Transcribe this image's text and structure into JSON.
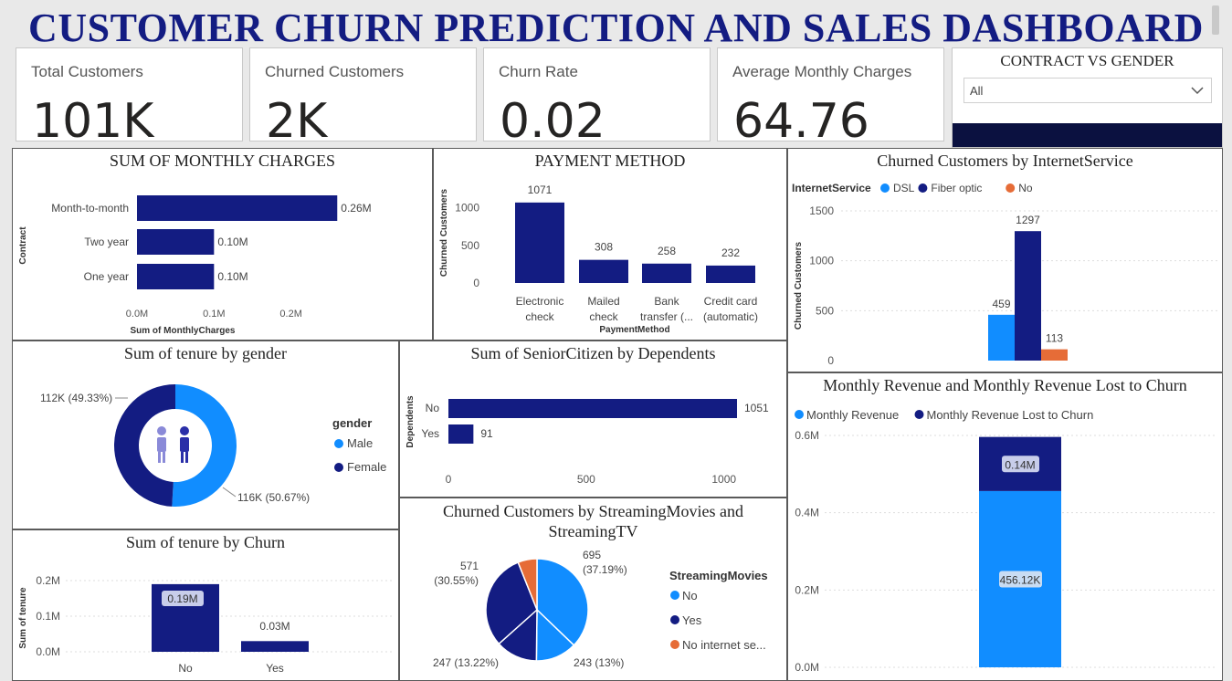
{
  "title": "CUSTOMER CHURN PREDICTION AND SALES DASHBOARD",
  "colors": {
    "navy": "#131c82",
    "lightblue": "#118dff",
    "orange": "#e66c37"
  },
  "kpis": [
    {
      "label": "Total Customers",
      "value": "101K"
    },
    {
      "label": "Churned Customers",
      "value": "2K"
    },
    {
      "label": "Churn Rate",
      "value": "0.02"
    },
    {
      "label": "Average Monthly Charges",
      "value": "64.76"
    }
  ],
  "slicer": {
    "title": "CONTRACT VS GENDER",
    "selected": "All",
    "icon": "chevron-down-icon"
  },
  "monthly_charges": {
    "title": "SUM OF MONTHLY CHARGES",
    "ylabel": "Contract",
    "xlabel": "Sum of MonthlyCharges",
    "categories": [
      "Month-to-month",
      "Two year",
      "One year"
    ],
    "values": [
      0.26,
      0.1,
      0.1
    ],
    "data_labels": [
      "0.26M",
      "0.10M",
      "0.10M"
    ],
    "xticks": [
      "0.0M",
      "0.1M",
      "0.2M"
    ],
    "xtick_values": [
      0,
      0.1,
      0.2
    ],
    "xlim": [
      0,
      0.3
    ]
  },
  "payment_method": {
    "title": "PAYMENT METHOD",
    "ylabel": "Churned Customers",
    "xlabel": "PaymentMethod",
    "categories": [
      [
        "Electronic",
        "check"
      ],
      [
        "Mailed",
        "check"
      ],
      [
        "Bank",
        "transfer (..."
      ],
      [
        "Credit card",
        "(automatic)"
      ]
    ],
    "values": [
      1071,
      308,
      258,
      232
    ],
    "data_labels": [
      "1071",
      "308",
      "258",
      "232"
    ],
    "yticks": [
      "0",
      "500",
      "1000"
    ],
    "ytick_values": [
      0,
      500,
      1000
    ],
    "ylim": [
      0,
      1300
    ]
  },
  "internet_service": {
    "title": "Churned Customers by InternetService",
    "legend_title": "InternetService",
    "ylabel": "Churned Customers",
    "series": [
      {
        "name": "DSL",
        "value": 459,
        "label": "459",
        "color": "#118dff"
      },
      {
        "name": "Fiber optic",
        "value": 1297,
        "label": "1297",
        "color": "#131c82"
      },
      {
        "name": "No",
        "value": 113,
        "label": "113",
        "color": "#e66c37"
      }
    ],
    "yticks": [
      "0",
      "500",
      "1000",
      "1500"
    ],
    "ytick_values": [
      0,
      500,
      1000,
      1500
    ],
    "ylim": [
      0,
      1500
    ]
  },
  "tenure_gender": {
    "title": "Sum of tenure by gender",
    "legend_title": "gender",
    "slices": [
      {
        "name": "Male",
        "value": 116,
        "label": "116K (50.67%)",
        "color": "#118dff"
      },
      {
        "name": "Female",
        "value": 112,
        "label": "112K (49.33%)",
        "color": "#131c82"
      }
    ],
    "center_icon": "male-female-icon"
  },
  "senior_dependents": {
    "title": "Sum of SeniorCitizen by Dependents",
    "ylabel": "Dependents",
    "categories": [
      "No",
      "Yes"
    ],
    "values": [
      1051,
      91
    ],
    "data_labels": [
      "1051",
      "91"
    ],
    "xticks": [
      "0",
      "500",
      "1000"
    ],
    "xtick_values": [
      0,
      500,
      1000
    ],
    "xlim": [
      0,
      1051
    ]
  },
  "tenure_churn": {
    "title": "Sum of tenure by Churn",
    "ylabel": "Sum of tenure",
    "categories": [
      "No",
      "Yes"
    ],
    "values": [
      0.19,
      0.03
    ],
    "data_labels": [
      "0.19M",
      "0.03M"
    ],
    "yticks": [
      "0.0M",
      "0.1M",
      "0.2M"
    ],
    "ytick_values": [
      0,
      0.1,
      0.2
    ],
    "ylim": [
      0,
      0.2
    ]
  },
  "streaming": {
    "title_line1": "Churned Customers by StreamingMovies and",
    "title_line2": "StreamingTV",
    "legend_title": "StreamingMovies",
    "legend": [
      {
        "name": "No",
        "color": "#118dff"
      },
      {
        "name": "Yes",
        "color": "#131c82"
      },
      {
        "name": "No internet se...",
        "color": "#e66c37"
      }
    ],
    "slices": [
      {
        "value": 695,
        "label1": "695",
        "label2": "(37.19%)",
        "color": "#118dff"
      },
      {
        "value": 243,
        "label1": "243 (13%)",
        "label2": "",
        "color": "#118dff"
      },
      {
        "value": 247,
        "label1": "247 (13.22%)",
        "label2": "",
        "color": "#131c82"
      },
      {
        "value": 571,
        "label1": "571",
        "label2": "(30.55%)",
        "color": "#131c82"
      },
      {
        "value": 113,
        "label1": "",
        "label2": "",
        "color": "#e66c37"
      }
    ]
  },
  "revenue": {
    "title": "Monthly Revenue and Monthly Revenue Lost to Churn",
    "legend": [
      {
        "name": "Monthly Revenue",
        "color": "#118dff"
      },
      {
        "name": "Monthly Revenue Lost to Churn",
        "color": "#131c82"
      }
    ],
    "values": [
      0.45612,
      0.14
    ],
    "data_labels": [
      "456.12K",
      "0.14M"
    ],
    "yticks": [
      "0.0M",
      "0.2M",
      "0.4M",
      "0.6M"
    ],
    "ytick_values": [
      0,
      0.2,
      0.4,
      0.6
    ],
    "ylim": [
      0,
      0.6
    ]
  }
}
